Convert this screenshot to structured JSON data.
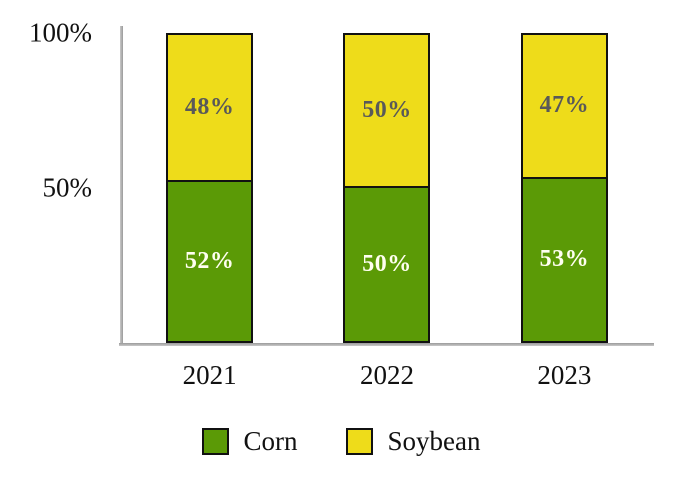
{
  "chart_data": {
    "type": "bar",
    "variant": "stacked-100-percent",
    "categories": [
      "2021",
      "2022",
      "2023"
    ],
    "series": [
      {
        "name": "Corn",
        "color": "#5B9A06",
        "label_color": "#FFFFF0",
        "values": [
          52,
          50,
          53
        ]
      },
      {
        "name": "Soybean",
        "color": "#EEDC1A",
        "label_color": "#595959",
        "values": [
          48,
          50,
          47
        ]
      }
    ],
    "value_suffix": "%",
    "y_ticks": [
      {
        "label": "100%",
        "value": 100
      },
      {
        "label": "50%",
        "value": 50
      }
    ],
    "ylim": [
      0,
      100
    ],
    "title": "",
    "xlabel": "",
    "ylabel": "",
    "grid": "off",
    "legend_position": "bottom",
    "colors": {
      "bar_border": "#111111",
      "axis_line": "#A6A6A6",
      "axis_text": "#111111"
    }
  }
}
